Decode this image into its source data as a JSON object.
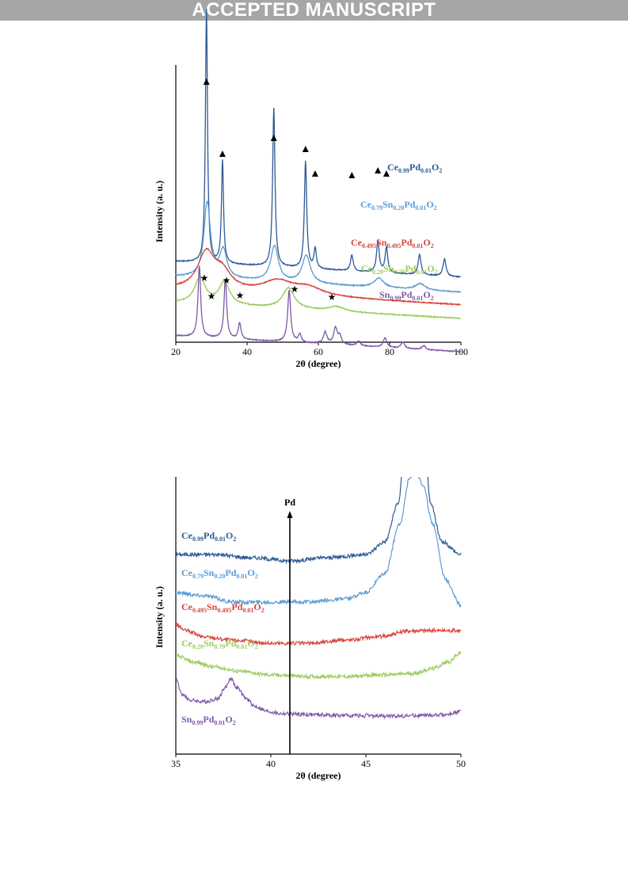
{
  "banner": {
    "text": "ACCEPTED MANUSCRIPT"
  },
  "chart_data": [
    {
      "type": "line",
      "xlabel": "2θ (degree)",
      "ylabel": "Intensity (a. u.)",
      "xlim": [
        20,
        100
      ],
      "xticks": [
        "20",
        "40",
        "60",
        "80",
        "100"
      ],
      "grid": false,
      "series": [
        {
          "name": "Ce0.99Pd0.01O2",
          "color": "#2e5a94",
          "parts": [
            "Ce",
            "0.99",
            "Pd",
            "0.01",
            "O",
            "2"
          ],
          "baseline": 0.62,
          "peaks": [
            [
              28.6,
              3.2,
              0.35
            ],
            [
              33.1,
              1.3,
              0.35
            ],
            [
              47.5,
              2.0,
              0.4
            ],
            [
              56.4,
              1.35,
              0.4
            ],
            [
              59.1,
              0.25,
              0.4
            ],
            [
              69.4,
              0.2,
              0.45
            ],
            [
              76.7,
              0.4,
              0.45
            ],
            [
              79.1,
              0.32,
              0.45
            ],
            [
              88.4,
              0.25,
              0.5
            ],
            [
              95.4,
              0.22,
              0.5
            ]
          ]
        },
        {
          "name": "Ce0.79Sn0.20Pd0.01O2",
          "color": "#5b9bd5",
          "parts": [
            "Ce",
            "0.79",
            "Sn",
            "0.20",
            "Pd",
            "0.01",
            "O",
            "2"
          ],
          "baseline": 0.43,
          "peaks": [
            [
              28.8,
              0.95,
              1.1
            ],
            [
              33.3,
              0.35,
              1.2
            ],
            [
              47.7,
              0.45,
              1.3
            ],
            [
              56.6,
              0.35,
              1.4
            ],
            [
              77.0,
              0.12,
              1.6
            ],
            [
              88.6,
              0.08,
              1.6
            ]
          ]
        },
        {
          "name": "Ce0.495Sn0.495Pd0.01O2",
          "color": "#d9433b",
          "parts": [
            "Ce",
            "0.495",
            "Sn",
            "0.495",
            "Pd",
            "0.01",
            "O",
            "2"
          ],
          "baseline": 0.27,
          "peaks": [
            [
              28.5,
              0.45,
              2.8
            ],
            [
              33.0,
              0.22,
              3.0
            ],
            [
              48.5,
              0.16,
              5.0
            ],
            [
              57.0,
              0.1,
              5.0
            ]
          ]
        },
        {
          "name": "Ce0.20Sn0.79Pd0.01O2",
          "color": "#9acb5b",
          "parts": [
            "Ce",
            "0.20",
            "Sn",
            "0.79",
            "Pd",
            "0.01",
            "O",
            "2"
          ],
          "baseline": 0.1,
          "peaks": [
            [
              26.8,
              0.33,
              1.8
            ],
            [
              33.6,
              0.28,
              1.8
            ],
            [
              51.6,
              0.26,
              2.0
            ],
            [
              65.0,
              0.06,
              2.5
            ]
          ]
        },
        {
          "name": "Sn0.99Pd0.01O2",
          "color": "#7d58a8",
          "parts": [
            "Sn",
            "0.99",
            "Pd",
            "0.01",
            "O",
            "2"
          ],
          "baseline": -0.32,
          "peaks": [
            [
              26.6,
              0.9,
              0.45
            ],
            [
              33.9,
              0.75,
              0.45
            ],
            [
              37.9,
              0.2,
              0.45
            ],
            [
              51.8,
              0.65,
              0.5
            ],
            [
              54.8,
              0.1,
              0.5
            ],
            [
              61.9,
              0.15,
              0.6
            ],
            [
              64.8,
              0.2,
              0.6
            ],
            [
              66.0,
              0.1,
              0.6
            ],
            [
              71.3,
              0.06,
              0.6
            ],
            [
              78.7,
              0.12,
              0.6
            ],
            [
              83.7,
              0.08,
              0.6
            ],
            [
              89.6,
              0.05,
              0.6
            ]
          ]
        }
      ],
      "annotations": {
        "triangle_markers": [
          28.6,
          33.1,
          47.5,
          56.4,
          59.1,
          69.4,
          76.7,
          79.1
        ],
        "star_markers": [
          26.6,
          30.3,
          33.9,
          37.9,
          51.8,
          63.8
        ]
      }
    },
    {
      "type": "line",
      "xlabel": "2θ (degree)",
      "ylabel": "Intensity (a. u.)",
      "xlim": [
        35,
        50
      ],
      "xticks": [
        "35",
        "40",
        "45",
        "50"
      ],
      "grid": false,
      "reference_line": {
        "x": 41.0,
        "label": "Pd"
      },
      "series": [
        {
          "name": "Ce0.99Pd0.01O2",
          "color": "#2e5a94",
          "parts": [
            "Ce",
            "0.99",
            "Pd",
            "0.01",
            "O",
            "2"
          ],
          "points": [
            [
              35,
              0.52
            ],
            [
              37,
              0.52
            ],
            [
              39,
              0.51
            ],
            [
              41,
              0.5
            ],
            [
              43,
              0.51
            ],
            [
              45,
              0.52
            ],
            [
              46,
              0.56
            ],
            [
              46.7,
              0.68
            ],
            [
              47.1,
              0.9
            ],
            [
              47.35,
              1.1
            ],
            [
              47.8,
              1.1
            ],
            [
              48.05,
              0.9
            ],
            [
              48.4,
              0.68
            ],
            [
              49,
              0.56
            ],
            [
              50,
              0.52
            ]
          ]
        },
        {
          "name": "Ce0.79Sn0.20Pd0.01O2",
          "color": "#5b9bd5",
          "parts": [
            "Ce",
            "0.79",
            "Sn",
            "0.20",
            "Pd",
            "0.01",
            "O",
            "2"
          ],
          "points": [
            [
              35,
              0.4
            ],
            [
              36.5,
              0.39
            ],
            [
              38,
              0.37
            ],
            [
              40,
              0.37
            ],
            [
              42,
              0.37
            ],
            [
              44,
              0.38
            ],
            [
              45,
              0.4
            ],
            [
              46,
              0.46
            ],
            [
              46.8,
              0.62
            ],
            [
              47.3,
              0.76
            ],
            [
              47.6,
              0.79
            ],
            [
              48.0,
              0.74
            ],
            [
              48.5,
              0.62
            ],
            [
              49.2,
              0.44
            ],
            [
              50,
              0.36
            ]
          ]
        },
        {
          "name": "Ce0.495Sn0.495Pd0.01O2",
          "color": "#d9433b",
          "parts": [
            "Ce",
            "0.495",
            "Sn",
            "0.495",
            "Pd",
            "0.01",
            "O",
            "2"
          ],
          "points": [
            [
              35,
              0.3
            ],
            [
              35.5,
              0.28
            ],
            [
              36.5,
              0.26
            ],
            [
              38,
              0.25
            ],
            [
              40,
              0.24
            ],
            [
              42,
              0.24
            ],
            [
              44,
              0.25
            ],
            [
              45.5,
              0.26
            ],
            [
              47.5,
              0.28
            ],
            [
              49,
              0.28
            ],
            [
              50,
              0.28
            ]
          ]
        },
        {
          "name": "Ce0.20Sn0.79Pd0.01O2",
          "color": "#9acb5b",
          "parts": [
            "Ce",
            "0.20",
            "Sn",
            "0.79",
            "Pd",
            "0.01",
            "O",
            "2"
          ],
          "points": [
            [
              35,
              0.2
            ],
            [
              36,
              0.18
            ],
            [
              37,
              0.165
            ],
            [
              38.5,
              0.15
            ],
            [
              40,
              0.14
            ],
            [
              42,
              0.135
            ],
            [
              44,
              0.135
            ],
            [
              46,
              0.14
            ],
            [
              47.5,
              0.145
            ],
            [
              48.5,
              0.16
            ],
            [
              49.3,
              0.18
            ],
            [
              50,
              0.21
            ]
          ]
        },
        {
          "name": "Sn0.99Pd0.01O2",
          "color": "#7d58a8",
          "parts": [
            "Sn",
            "0.99",
            "Pd",
            "0.01",
            "O",
            "2"
          ],
          "points": [
            [
              35,
              0.13
            ],
            [
              35.3,
              0.08
            ],
            [
              35.8,
              0.06
            ],
            [
              36.5,
              0.055
            ],
            [
              37.2,
              0.065
            ],
            [
              37.6,
              0.1
            ],
            [
              37.9,
              0.13
            ],
            [
              38.2,
              0.1
            ],
            [
              38.7,
              0.065
            ],
            [
              39.2,
              0.04
            ],
            [
              39.8,
              0.025
            ],
            [
              40.5,
              0.018
            ],
            [
              42,
              0.015
            ],
            [
              44,
              0.012
            ],
            [
              46,
              0.01
            ],
            [
              48,
              0.012
            ],
            [
              49.3,
              0.015
            ],
            [
              50,
              0.025
            ]
          ]
        }
      ]
    }
  ]
}
